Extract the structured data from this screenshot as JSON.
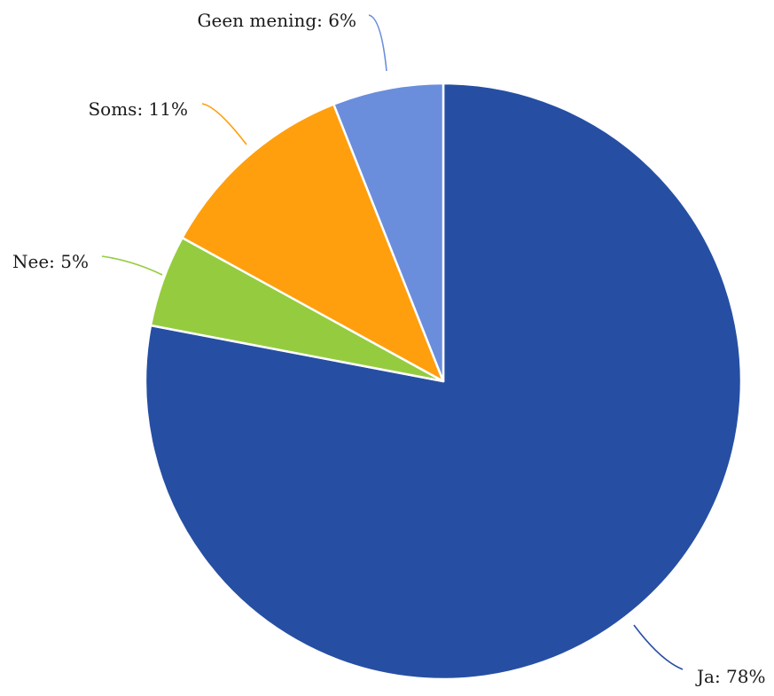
{
  "chart_data": {
    "type": "pie",
    "title": "",
    "start_angle_deg": 0,
    "direction": "clockwise",
    "slices": [
      {
        "label": "Ja",
        "value": 78,
        "display": "Ja: 78%",
        "color": "#264FA3"
      },
      {
        "label": "Nee",
        "value": 5,
        "display": "Nee: 5%",
        "color": "#95CC3F"
      },
      {
        "label": "Soms",
        "value": 11,
        "display": "Soms: 11%",
        "color": "#FF9F0E"
      },
      {
        "label": "Geen mening",
        "value": 6,
        "display": "Geen mening: 6%",
        "color": "#6A8EDC"
      }
    ]
  }
}
